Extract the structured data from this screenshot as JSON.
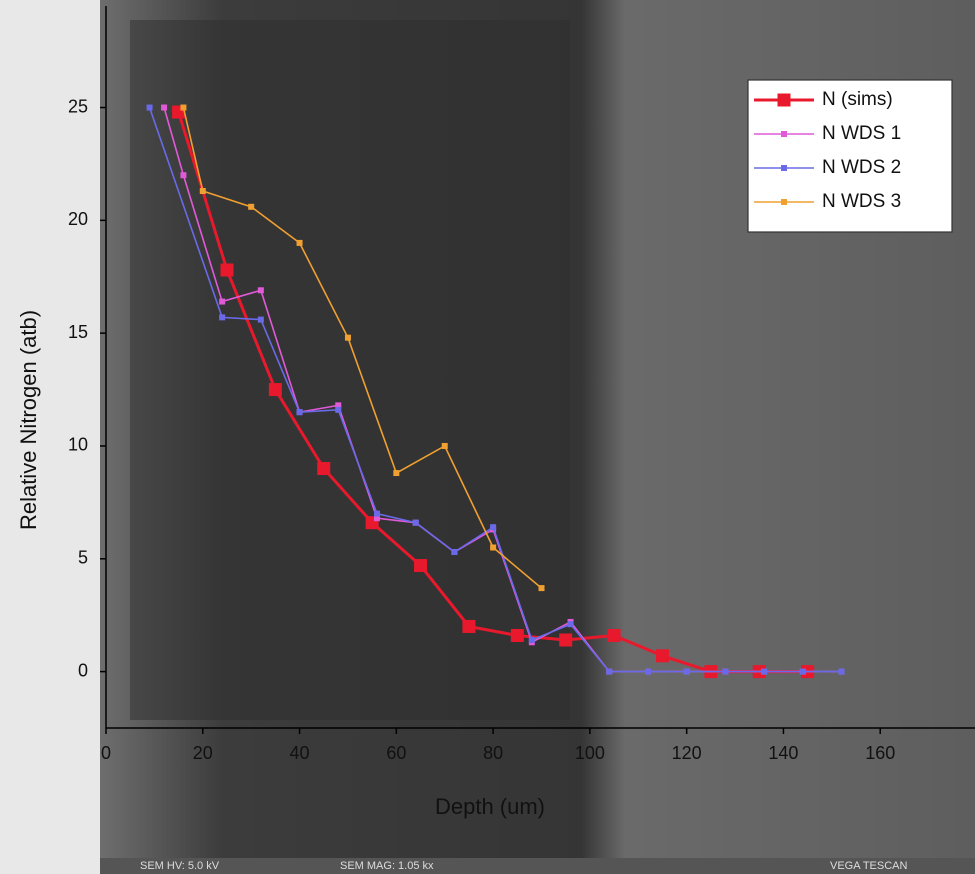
{
  "chart_data": {
    "type": "line",
    "xlabel": "Depth (um)",
    "ylabel": "Relative Nitrogen (atb)",
    "xlim": [
      0,
      180
    ],
    "xticks": [
      0,
      20,
      40,
      60,
      80,
      100,
      120,
      140,
      160
    ],
    "ylim": [
      -2.5,
      29.5
    ],
    "yticks": [
      0,
      5,
      10,
      15,
      20,
      25
    ],
    "legend": "upper right",
    "series": [
      {
        "name": "N (sims)",
        "color": "#e8192c",
        "x": [
          15,
          25,
          35,
          45,
          55,
          65,
          75,
          85,
          95,
          105,
          115,
          125,
          135,
          145
        ],
        "values": [
          24.8,
          17.8,
          12.5,
          9.0,
          6.6,
          4.7,
          2.0,
          1.6,
          1.4,
          1.6,
          0.7,
          0,
          0,
          0
        ]
      },
      {
        "name": "N WDS 1",
        "color": "#e05ad8",
        "x": [
          12,
          16,
          24,
          32,
          40,
          48,
          56,
          64,
          72,
          80,
          88,
          96,
          104,
          112,
          120,
          128,
          136,
          144,
          152
        ],
        "values": [
          25,
          22,
          16.4,
          16.9,
          11.5,
          11.8,
          6.8,
          6.6,
          5.3,
          6.3,
          1.3,
          2.2,
          0,
          0,
          0,
          0,
          0,
          0,
          0
        ]
      },
      {
        "name": "N WDS 2",
        "color": "#6a6ae8",
        "x": [
          9,
          24,
          32,
          40,
          48,
          56,
          64,
          72,
          80,
          88,
          96,
          104,
          112,
          120,
          128,
          136,
          144,
          152
        ],
        "values": [
          25,
          15.7,
          15.6,
          11.5,
          11.6,
          7.0,
          6.6,
          5.3,
          6.4,
          1.4,
          2.1,
          0,
          0,
          0,
          0,
          0,
          0,
          0
        ]
      },
      {
        "name": "N WDS 3",
        "color": "#f0a030",
        "x": [
          16,
          20,
          30,
          40,
          50,
          60,
          70,
          80,
          90
        ],
        "values": [
          25,
          21.3,
          20.6,
          19.0,
          14.8,
          8.8,
          10.0,
          5.5,
          3.7
        ]
      }
    ]
  },
  "image_footer": [
    "SEM HV: 5.0 kV",
    "SEM MAG: 1.05 kx",
    "VEGA TESCAN"
  ]
}
